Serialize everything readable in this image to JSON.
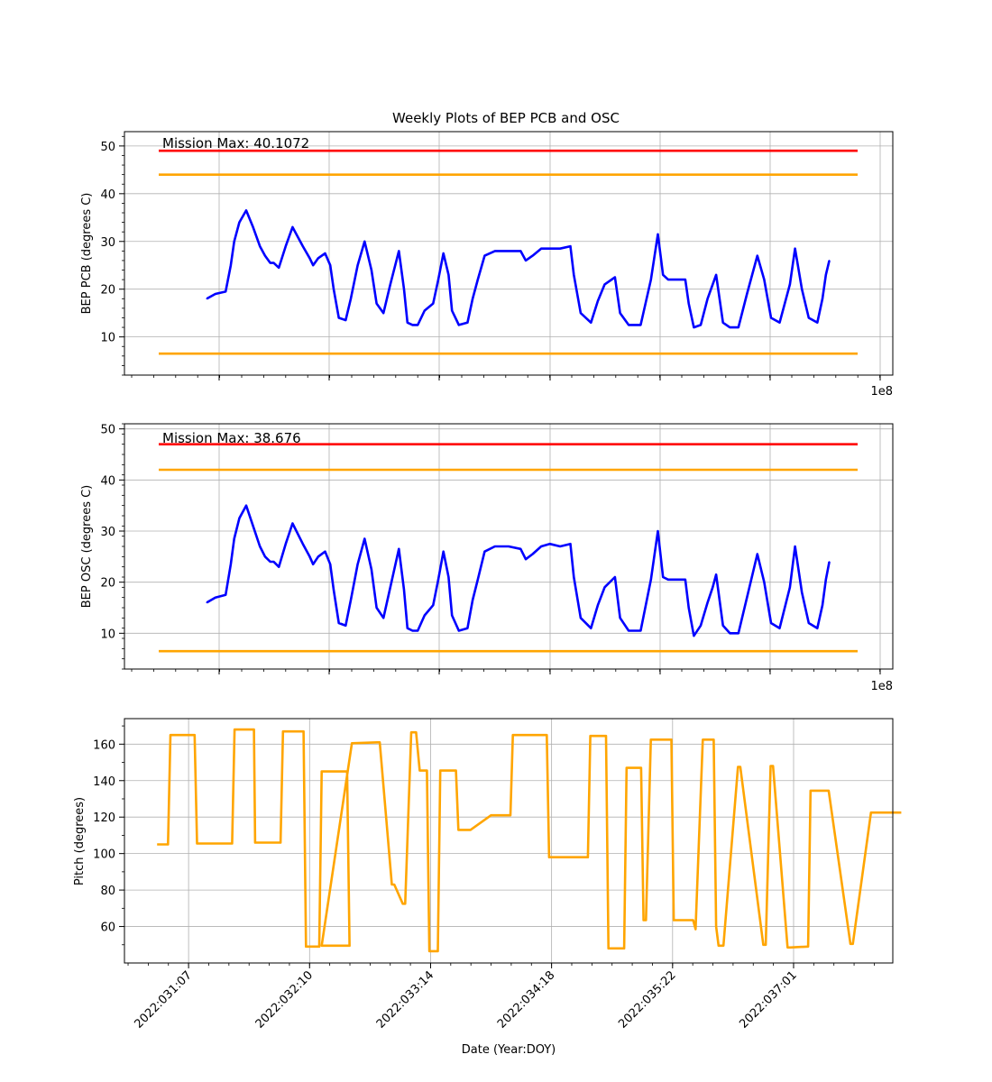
{
  "figure": {
    "title": "Weekly Plots of BEP PCB and OSC",
    "xlabel": "Date (Year:DOY)"
  },
  "chart_data": [
    {
      "type": "line",
      "ylabel": "BEP PCB (degrees C)",
      "offset_text": "1e8",
      "ylim": [
        2,
        53
      ],
      "yticks": [
        10,
        20,
        30,
        40,
        50
      ],
      "grid": true,
      "annotation": "Mission Max: 40.1072",
      "limits": [
        {
          "name": "red_high",
          "value": 49,
          "color": "#ff0000"
        },
        {
          "name": "yellow_high",
          "value": 44,
          "color": "#ffa500"
        },
        {
          "name": "yellow_low",
          "value": 6.5,
          "color": "#ffa500"
        }
      ],
      "series": [
        {
          "color": "#0000ff",
          "x": [
            0.7,
            0.95,
            1.25,
            1.4,
            1.5,
            1.65,
            1.85,
            2.05,
            2.25,
            2.4,
            2.55,
            2.65,
            2.8,
            3.0,
            3.2,
            3.5,
            3.7,
            3.8,
            3.95,
            4.15,
            4.3,
            4.4,
            4.55,
            4.75,
            4.9,
            5.1,
            5.3,
            5.5,
            5.65,
            5.85,
            6.05,
            6.3,
            6.45,
            6.55,
            6.7,
            6.85,
            7.05,
            7.3,
            7.45,
            7.6,
            7.75,
            7.85,
            8.05,
            8.3,
            8.45,
            8.6,
            8.8,
            9.1,
            9.5,
            9.85,
            10.0,
            10.2,
            10.45,
            10.7,
            11.0,
            11.3,
            11.4,
            11.6,
            11.9,
            12.1,
            12.3,
            12.6,
            12.75,
            13.0,
            13.35,
            13.65,
            13.85,
            14.0,
            14.15,
            14.4,
            14.65,
            14.75,
            14.9,
            15.1,
            15.3,
            15.45,
            15.55,
            15.75,
            15.95,
            16.2,
            16.45,
            16.75,
            16.95,
            17.15,
            17.4,
            17.7,
            17.85,
            18.05,
            18.25,
            18.5,
            18.65,
            18.75,
            18.85
          ],
          "y": [
            18,
            19,
            19.5,
            25,
            30,
            34,
            36.5,
            33,
            29,
            27,
            25.5,
            25.5,
            24.5,
            29,
            33,
            29,
            26.5,
            25,
            26.5,
            27.5,
            25,
            20,
            14,
            13.5,
            18,
            25,
            30,
            24,
            17,
            15,
            21,
            28,
            20,
            13,
            12.5,
            12.5,
            15.5,
            17,
            22,
            27.5,
            23,
            15.5,
            12.5,
            13,
            18,
            22,
            27,
            28,
            28,
            28,
            26,
            27,
            28.5,
            28.5,
            28.5,
            29,
            23,
            15,
            13,
            17.5,
            21,
            22.5,
            15,
            12.5,
            12.5,
            22,
            31.5,
            23,
            22,
            22,
            22,
            17,
            12,
            12.5,
            18,
            21,
            23,
            13,
            12,
            12,
            19,
            27,
            22,
            14,
            13,
            21,
            28.5,
            20,
            14,
            13,
            18,
            23,
            26
          ]
        }
      ]
    },
    {
      "type": "line",
      "ylabel": "BEP OSC (degrees C)",
      "offset_text": "1e8",
      "ylim": [
        3,
        51
      ],
      "yticks": [
        10,
        20,
        30,
        40,
        50
      ],
      "grid": true,
      "annotation": "Mission Max: 38.676",
      "limits": [
        {
          "name": "red_high",
          "value": 47,
          "color": "#ff0000"
        },
        {
          "name": "yellow_high",
          "value": 42,
          "color": "#ffa500"
        },
        {
          "name": "yellow_low",
          "value": 6.5,
          "color": "#ffa500"
        }
      ],
      "series": [
        {
          "color": "#0000ff",
          "x": [
            0.7,
            0.95,
            1.25,
            1.4,
            1.5,
            1.65,
            1.85,
            2.05,
            2.25,
            2.4,
            2.55,
            2.65,
            2.8,
            3.0,
            3.2,
            3.5,
            3.7,
            3.8,
            3.95,
            4.15,
            4.3,
            4.4,
            4.55,
            4.75,
            4.9,
            5.1,
            5.3,
            5.5,
            5.65,
            5.85,
            6.05,
            6.3,
            6.45,
            6.55,
            6.7,
            6.85,
            7.05,
            7.3,
            7.45,
            7.6,
            7.75,
            7.85,
            8.05,
            8.3,
            8.45,
            8.6,
            8.8,
            9.1,
            9.5,
            9.85,
            10.0,
            10.2,
            10.45,
            10.7,
            11.0,
            11.3,
            11.4,
            11.6,
            11.9,
            12.1,
            12.3,
            12.6,
            12.75,
            13.0,
            13.35,
            13.65,
            13.85,
            14.0,
            14.15,
            14.4,
            14.65,
            14.75,
            14.9,
            15.1,
            15.3,
            15.45,
            15.55,
            15.75,
            15.95,
            16.2,
            16.45,
            16.75,
            16.95,
            17.15,
            17.4,
            17.7,
            17.85,
            18.05,
            18.25,
            18.5,
            18.65,
            18.75,
            18.85
          ],
          "y": [
            16,
            17,
            17.5,
            23.5,
            28.5,
            32.5,
            35,
            31,
            27,
            25,
            24,
            24,
            23,
            27.5,
            31.5,
            27.5,
            25,
            23.5,
            25,
            26,
            23.5,
            18.5,
            12,
            11.5,
            16.5,
            23.5,
            28.5,
            22.5,
            15,
            13,
            19,
            26.5,
            18.5,
            11,
            10.5,
            10.5,
            13.5,
            15.5,
            20.5,
            26,
            21,
            13.5,
            10.5,
            11,
            16.5,
            20.5,
            26,
            27,
            27,
            26.5,
            24.5,
            25.5,
            27,
            27.5,
            27,
            27.5,
            21,
            13,
            11,
            15.5,
            19,
            21,
            13,
            10.5,
            10.5,
            20.5,
            30,
            21,
            20.5,
            20.5,
            20.5,
            15,
            9.5,
            11.5,
            16,
            19,
            21.5,
            11.5,
            10,
            10,
            17,
            25.5,
            20,
            12,
            11,
            19,
            27,
            18,
            12,
            11,
            15.5,
            20.5,
            24
          ]
        }
      ]
    },
    {
      "type": "line",
      "ylabel": "Pitch (degrees)",
      "xlabel": "Date (Year:DOY)",
      "ylim": [
        40,
        174
      ],
      "yticks": [
        60,
        80,
        100,
        120,
        140,
        160
      ],
      "grid": true,
      "xtick_labels": [
        "2022:031:07",
        "2022:032:10",
        "2022:033:14",
        "2022:034:18",
        "2022:035:22",
        "2022:037:01"
      ],
      "xticks": [
        0,
        1,
        2,
        3,
        4,
        5
      ],
      "xlim": [
        -0.53,
        5.82
      ],
      "series": [
        {
          "color": "#ffa500",
          "x": [
            -0.26,
            -0.2,
            -0.17,
            -0.15,
            0.05,
            0.07,
            0.12,
            0.36,
            0.38,
            0.54,
            0.55,
            0.76,
            0.78,
            0.95,
            0.97,
            1.08,
            1.1,
            1.15,
            1.31,
            1.33,
            1.1,
            1.1,
            1.35,
            1.56,
            1.58,
            1.68,
            1.7,
            1.77,
            1.79,
            1.84,
            1.86,
            1.88,
            1.91,
            1.97,
            1.99,
            2.06,
            2.08,
            2.21,
            2.23,
            2.28,
            2.33,
            2.5,
            2.52,
            2.66,
            2.68,
            2.96,
            2.98,
            3.3,
            3.32,
            3.45,
            3.47,
            3.6,
            3.62,
            3.74,
            3.76,
            3.78,
            3.82,
            3.99,
            4.01,
            4.17,
            4.19,
            4.25,
            4.27,
            4.34,
            4.36,
            4.38,
            4.42,
            4.54,
            4.56,
            4.75,
            4.77,
            4.81,
            4.83,
            4.95,
            4.97,
            5.12,
            5.14,
            5.27,
            5.29,
            5.47,
            5.49,
            5.64,
            5.66,
            5.79,
            5.81,
            5.87,
            5.89
          ],
          "y": [
            105,
            105,
            105,
            165,
            165,
            105.5,
            105.5,
            105.5,
            168,
            168,
            106,
            106,
            167,
            167,
            49,
            49,
            145,
            145,
            145,
            49.5,
            49.5,
            49.5,
            160.5,
            161,
            161,
            83,
            83,
            72.5,
            72.5,
            166.5,
            166.5,
            166.5,
            145.5,
            145.5,
            46.5,
            46.5,
            145.5,
            145.5,
            113,
            113,
            113,
            121,
            121,
            121,
            165,
            165,
            98,
            98,
            164.5,
            164.5,
            48,
            48,
            147,
            147,
            63.5,
            63.5,
            162.5,
            162.5,
            63.5,
            63.5,
            58.5,
            162.5,
            162.5,
            162.5,
            60,
            49.5,
            49.5,
            147.5,
            147.5,
            50,
            50,
            148,
            148,
            48.5,
            48.5,
            49,
            134.5,
            134.5,
            134.5,
            50.5,
            50.5,
            122.5,
            122.5,
            122.5,
            122.5,
            122.5,
            122.5
          ]
        }
      ]
    }
  ]
}
